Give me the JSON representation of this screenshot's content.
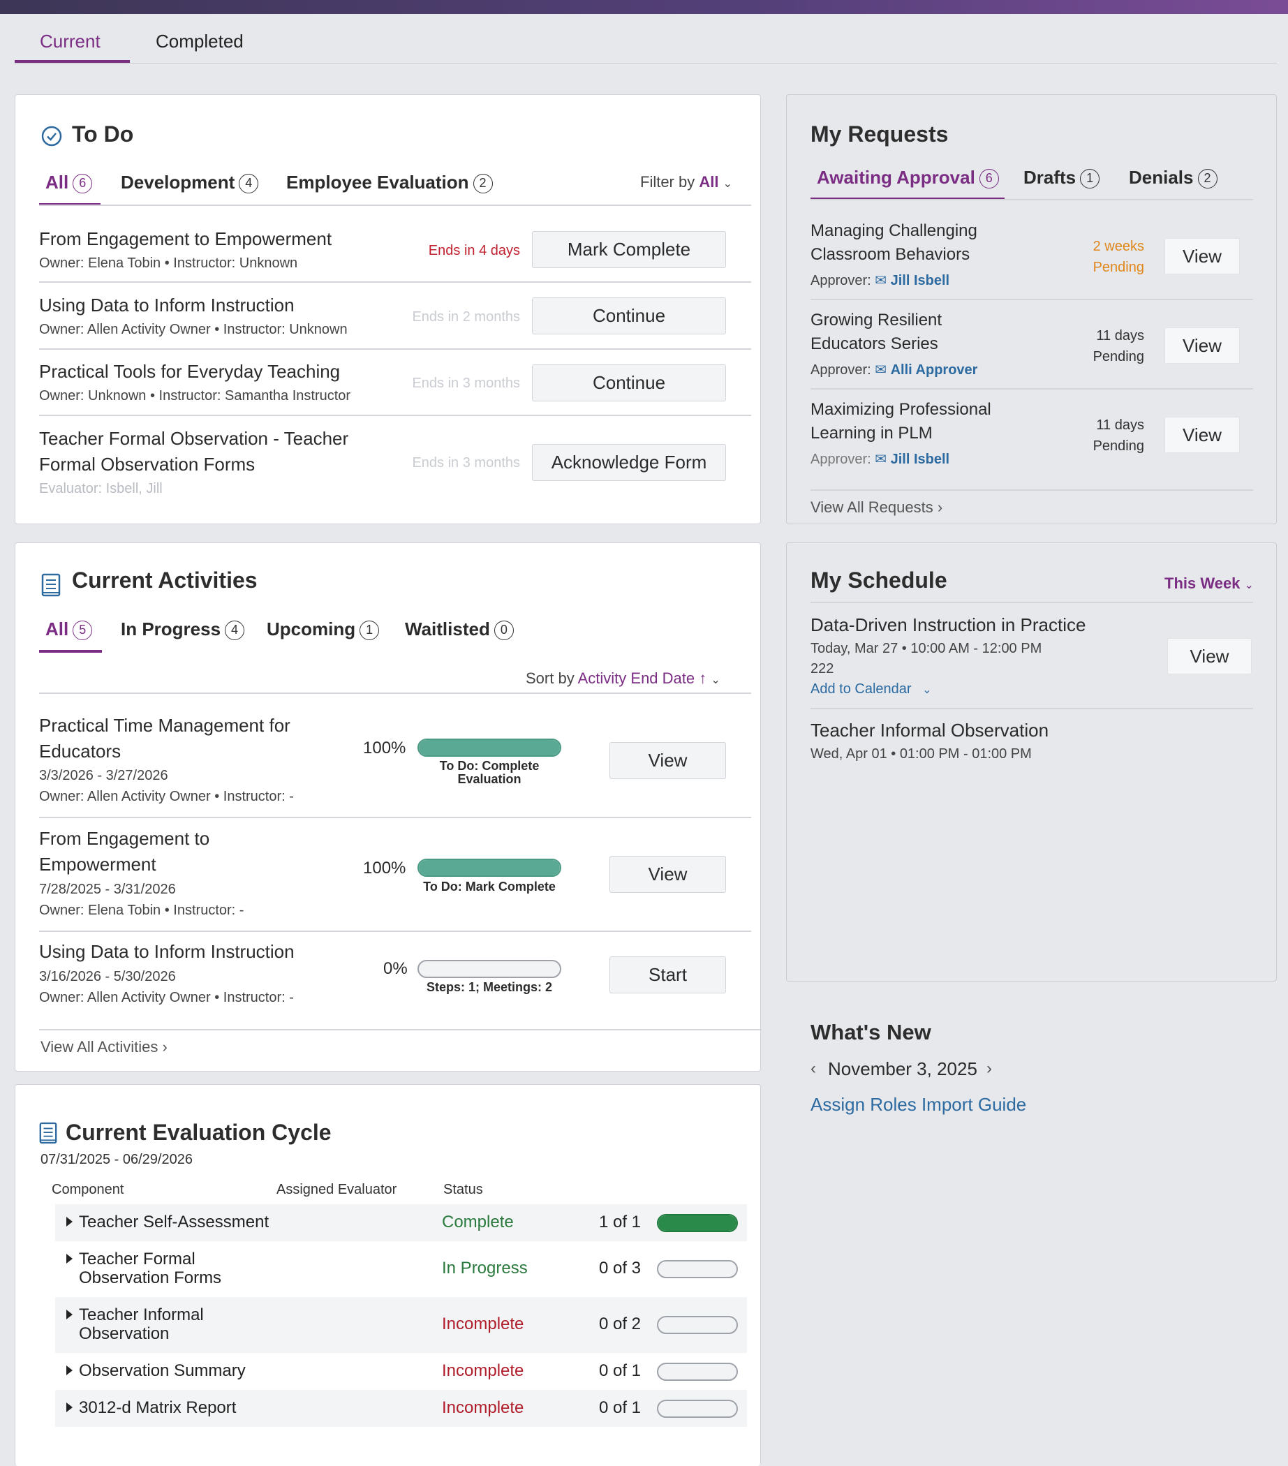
{
  "tabs": {
    "current": "Current",
    "completed": "Completed"
  },
  "todo": {
    "title": "To Do",
    "tabs": [
      {
        "label": "All",
        "count": "6"
      },
      {
        "label": "Development",
        "count": "4"
      },
      {
        "label": "Employee Evaluation",
        "count": "2"
      }
    ],
    "filter_label": "Filter by",
    "filter_value": "All",
    "items": [
      {
        "title": "From Engagement to Empowerment",
        "sub": "Owner: Elena Tobin • Instructor: Unknown",
        "ends": "Ends in 4 days",
        "button": "Mark Complete"
      },
      {
        "title": "Using Data to Inform Instruction",
        "sub": "Owner: Allen Activity Owner • Instructor: Unknown",
        "ends": "Ends in 2 months",
        "button": "Continue"
      },
      {
        "title": "Practical Tools for Everyday Teaching",
        "sub": "Owner: Unknown • Instructor: Samantha Instructor",
        "ends": "Ends in 3 months",
        "button": "Continue"
      },
      {
        "title_line1": "Teacher Formal Observation - Teacher",
        "title_line2": "Formal Observation Forms",
        "sub": "Evaluator: Isbell, Jill",
        "ends": "Ends in 3 months",
        "button": "Acknowledge Form"
      }
    ]
  },
  "activities": {
    "title": "Current Activities",
    "tabs": [
      {
        "label": "All",
        "count": "5"
      },
      {
        "label": "In Progress",
        "count": "4"
      },
      {
        "label": "Upcoming",
        "count": "1"
      },
      {
        "label": "Waitlisted",
        "count": "0"
      }
    ],
    "sort_label": "Sort by",
    "sort_value": "Activity End Date",
    "sort_arrow": "↑",
    "items": [
      {
        "title_line1": "Practical Time Management for",
        "title_line2": "Educators",
        "dates": "3/3/2026 - 3/27/2026",
        "sub": "Owner: Allen Activity Owner • Instructor: -",
        "percent": "100%",
        "progress": 1.0,
        "note_line1": "To Do: Complete",
        "note_line2": "Evaluation",
        "button": "View"
      },
      {
        "title_line1": "From Engagement to",
        "title_line2": "Empowerment",
        "dates": "7/28/2025 - 3/31/2026",
        "sub": "Owner: Elena Tobin • Instructor: -",
        "percent": "100%",
        "progress": 1.0,
        "note_line1": "To Do: Mark Complete",
        "button": "View"
      },
      {
        "title_line1": "Using Data to Inform Instruction",
        "dates": "3/16/2026 - 5/30/2026",
        "sub": "Owner: Allen Activity Owner • Instructor: -",
        "percent": "0%",
        "progress": 0.0,
        "note_line1": "Steps: 1; Meetings: 2",
        "button": "Start"
      }
    ],
    "view_all": "View All Activities"
  },
  "evaluation": {
    "title": "Current Evaluation Cycle",
    "dates": "07/31/2025 - 06/29/2026",
    "columns": {
      "component": "Component",
      "evaluator": "Assigned Evaluator",
      "status": "Status"
    },
    "rows": [
      {
        "line1": "Teacher Self-Assessment",
        "status": "Complete",
        "count": "1 of 1",
        "progress": 1.0
      },
      {
        "line1": "Teacher Formal",
        "line2": "Observation Forms",
        "status": "In Progress",
        "count": "0 of 3",
        "progress": 0.0
      },
      {
        "line1": "Teacher Informal",
        "line2": "Observation",
        "status": "Incomplete",
        "count": "0 of 2",
        "progress": 0.0
      },
      {
        "line1": "Observation Summary",
        "status": "Incomplete",
        "count": "0 of 1",
        "progress": 0.0
      },
      {
        "line1": "3012-d Matrix Report",
        "status": "Incomplete",
        "count": "0 of 1",
        "progress": 0.0
      }
    ]
  },
  "requests": {
    "title": "My Requests",
    "tabs": [
      {
        "label": "Awaiting Approval",
        "count": "6"
      },
      {
        "label": "Drafts",
        "count": "1"
      },
      {
        "label": "Denials",
        "count": "2"
      }
    ],
    "items": [
      {
        "title_line1": "Managing Challenging",
        "title_line2": "Classroom Behaviors",
        "approver_label": "Approver:",
        "approver": "Jill Isbell",
        "age": "2 weeks",
        "state": "Pending",
        "button": "View"
      },
      {
        "title_line1": "Growing Resilient",
        "title_line2": "Educators Series",
        "approver_label": "Approver:",
        "approver": "Alli Approver",
        "age": "11 days",
        "state": "Pending",
        "button": "View"
      },
      {
        "title_line1": "Maximizing Professional",
        "title_line2": "Learning in PLM",
        "approver_label": "Approver:",
        "approver": "Jill Isbell",
        "age": "11 days",
        "state": "Pending",
        "button": "View"
      }
    ],
    "view_all": "View All Requests"
  },
  "schedule": {
    "title": "My Schedule",
    "range": "This Week",
    "items": [
      {
        "title": "Data-Driven Instruction in Practice",
        "when": "Today, Mar 27 • 10:00 AM - 12:00 PM",
        "room": "222",
        "add": "Add to Calendar",
        "button": "View"
      },
      {
        "title": "Teacher Informal Observation",
        "when": "Wed, Apr 01 • 01:00 PM - 01:00 PM"
      }
    ]
  },
  "whats_new": {
    "title": "What's New",
    "date": "November 3, 2025",
    "link": "Assign Roles Import Guide"
  },
  "colors": {
    "accent": "#7a2d83",
    "complete": "#2a8a4a",
    "progress_teal": "#5aa994",
    "incomplete": "#b01c2a",
    "warning": "#e0861a"
  }
}
